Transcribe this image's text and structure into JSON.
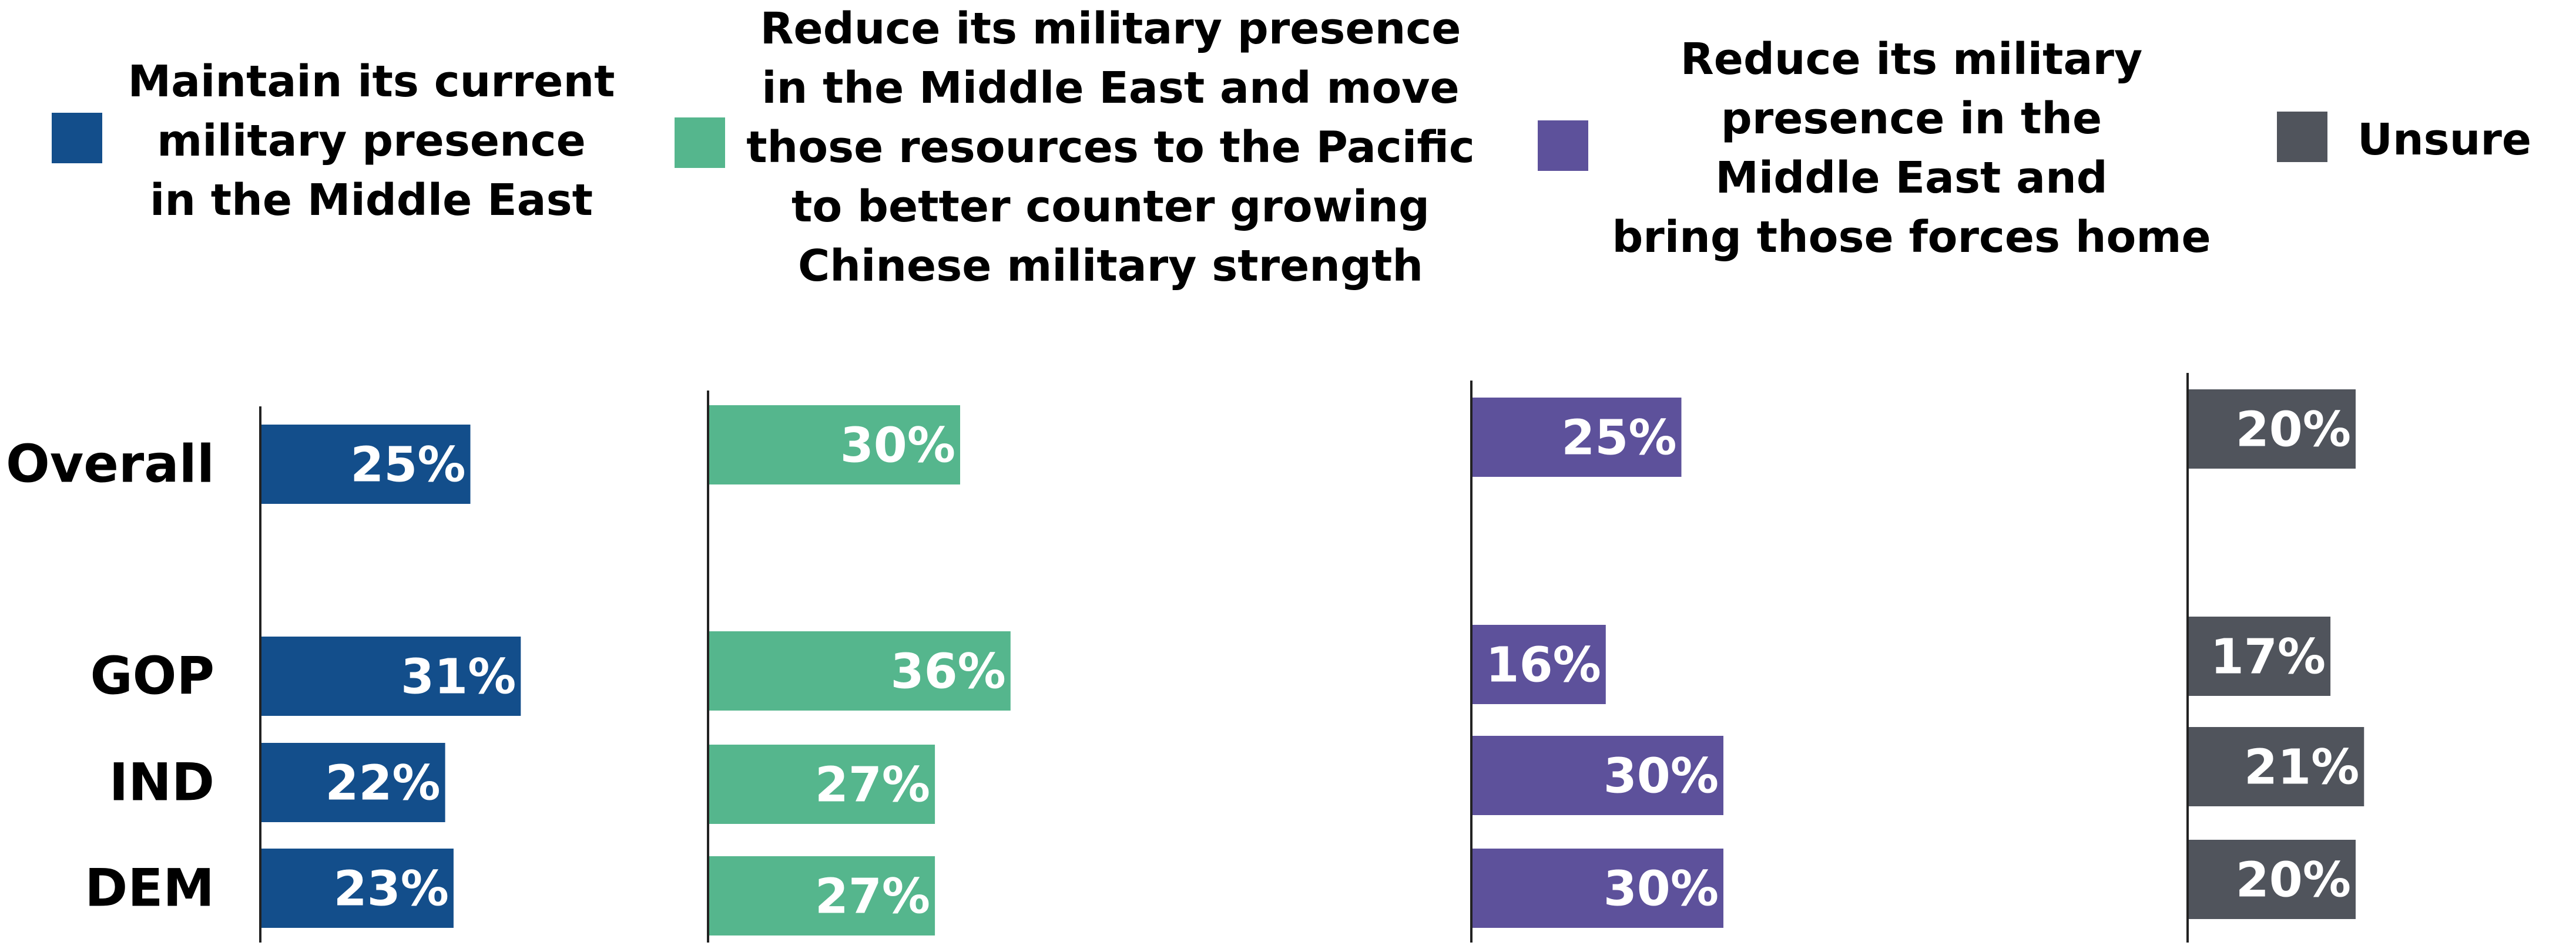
{
  "chart_data": {
    "type": "bar",
    "orientation": "horizontal",
    "categories": [
      "Overall",
      "GOP",
      "IND",
      "DEM"
    ],
    "series": [
      {
        "name": "Maintain its current military presence in the Middle East",
        "label_lines": [
          "Maintain its current",
          "military presence",
          "in the Middle East"
        ],
        "color": "#134E8B",
        "values": [
          25,
          31,
          22,
          23
        ],
        "labels": [
          "25%",
          "31%",
          "22%",
          "23%"
        ]
      },
      {
        "name": "Reduce its military presence in the Middle East and move those resources to the Pacific to better counter growing Chinese military strength",
        "label_lines": [
          "Reduce its military presence",
          "in the Middle East and move",
          "those resources to the Pacific",
          "to better counter growing",
          "Chinese military strength"
        ],
        "color": "#55B68D",
        "values": [
          30,
          36,
          27,
          27
        ],
        "labels": [
          "30%",
          "36%",
          "27%",
          "27%"
        ]
      },
      {
        "name": "Reduce its military presence in the Middle East and bring those forces home",
        "label_lines": [
          "Reduce its military",
          "presence in the",
          "Middle East and",
          "bring those forces home"
        ],
        "color": "#5D519B",
        "values": [
          25,
          16,
          30,
          30
        ],
        "labels": [
          "25%",
          "16%",
          "30%",
          "30%"
        ]
      },
      {
        "name": "Unsure",
        "label_lines": [
          "Unsure"
        ],
        "color": "#50545C",
        "values": [
          20,
          17,
          21,
          20
        ],
        "labels": [
          "20%",
          "17%",
          "21%",
          "20%"
        ]
      }
    ],
    "legend_position": "top",
    "grid": false
  }
}
